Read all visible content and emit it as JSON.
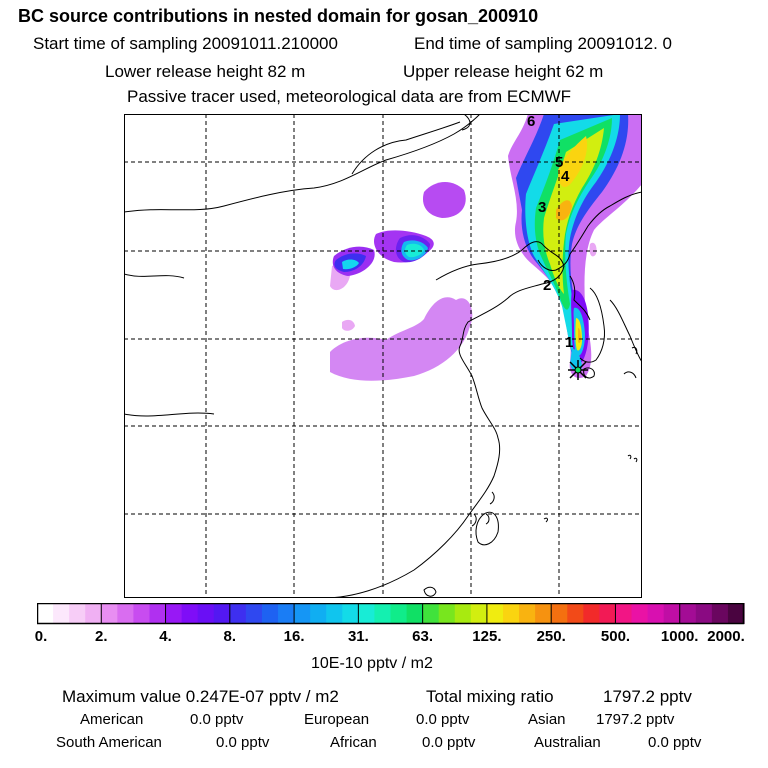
{
  "header": {
    "title": "BC  source contributions in nested domain for gosan_200910",
    "start_label": "Start time of sampling 20091011.210000",
    "end_label": "End time of sampling 20091012.     0",
    "lower_label": "Lower release height   82 m",
    "upper_label": "Upper release height   62 m",
    "tracer_note": "Passive tracer used, meteorological data are from ECMWF"
  },
  "map": {
    "trajectory_markers": [
      "1",
      "2",
      "3",
      "4",
      "5",
      "6"
    ],
    "receptor": "gosan"
  },
  "colorbar": {
    "tick_labels": [
      "0.",
      "2.",
      "4.",
      "8.",
      "16.",
      "31.",
      "63.",
      "125.",
      "250.",
      "500.",
      "1000.",
      "2000."
    ],
    "colors": [
      "#ffffff",
      "#fce8fc",
      "#f7cdf7",
      "#f0b0f3",
      "#e88ef2",
      "#d96df0",
      "#c84cf0",
      "#b030f0",
      "#9818f5",
      "#7f0df7",
      "#6a0ff5",
      "#5318f2",
      "#3e2ff0",
      "#2f48f0",
      "#1e62f2",
      "#1a7df5",
      "#1596f5",
      "#10aef2",
      "#10c5ee",
      "#13dbe8",
      "#18ecd6",
      "#14f0b0",
      "#10ec8a",
      "#10e065",
      "#40e23c",
      "#78e61e",
      "#a8ea10",
      "#d2ee10",
      "#f0ec10",
      "#fad410",
      "#f9b310",
      "#f69210",
      "#f47010",
      "#f24a18",
      "#f22a2a",
      "#f21a55",
      "#f21585",
      "#ea12a5",
      "#d810b0",
      "#c00ea5",
      "#a30c95",
      "#8a0a82",
      "#6a065f",
      "#4a0440"
    ],
    "units": "10E-10 pptv / m2"
  },
  "summary": {
    "max_value": "Maximum value  0.247E-07 pptv / m2",
    "total_label": "Total mixing ratio",
    "total_value": "1797.2 pptv",
    "regions": [
      {
        "name": "American",
        "value": "0.0 pptv"
      },
      {
        "name": "European",
        "value": "0.0 pptv"
      },
      {
        "name": "Asian",
        "value": "1797.2 pptv"
      },
      {
        "name": "South American",
        "value": "0.0 pptv"
      },
      {
        "name": "African",
        "value": "0.0 pptv"
      },
      {
        "name": "Australian",
        "value": "0.0 pptv"
      }
    ]
  }
}
